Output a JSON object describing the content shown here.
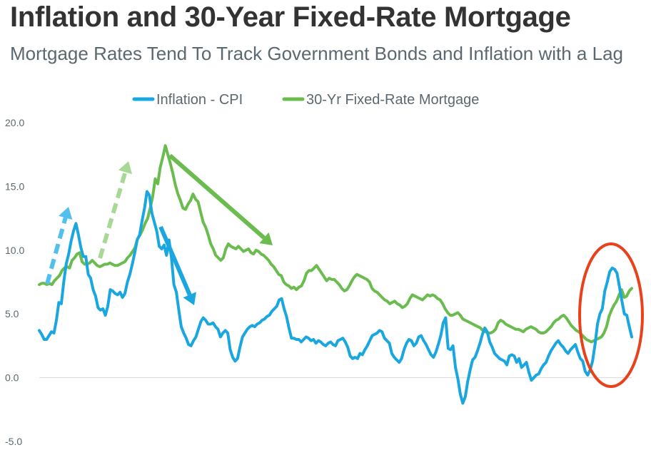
{
  "title": "Inflation and 30-Year Fixed-Rate Mortgage",
  "subtitle": "Mortgage Rates Tend To Track Government Bonds and Inflation with a Lag",
  "chart_data": {
    "type": "line",
    "ylim": [
      -5,
      20
    ],
    "y_ticks": [
      "20.0",
      "15.0",
      "10.0",
      "5.0",
      "0.0",
      "-5.0"
    ],
    "y_tick_values": [
      20,
      15,
      10,
      5,
      0,
      -5
    ],
    "grid": false,
    "legend_position": "top-center",
    "series": [
      {
        "name": "Inflation - CPI",
        "color": "#1aa7e0",
        "values": [
          3.7,
          3.4,
          3.0,
          3.0,
          3.3,
          3.6,
          3.5,
          4.5,
          5.9,
          5.8,
          7.5,
          8.9,
          9.7,
          10.7,
          11.5,
          12.1,
          11.2,
          10.2,
          9.5,
          9.5,
          8.1,
          7.8,
          6.9,
          6.4,
          5.5,
          5.3,
          5.4,
          4.9,
          5.6,
          6.9,
          6.8,
          6.6,
          6.5,
          6.7,
          6.3,
          6.6,
          7.5,
          8.1,
          8.9,
          9.8,
          10.8,
          11.2,
          12.3,
          13.3,
          14.6,
          14.3,
          12.9,
          12.2,
          11.5,
          10.3,
          10.1,
          10.4,
          9.6,
          10.8,
          9.4,
          7.3,
          6.7,
          5.3,
          4.0,
          3.5,
          3.1,
          2.6,
          2.5,
          2.9,
          3.2,
          3.8,
          4.4,
          4.7,
          4.5,
          4.2,
          4.2,
          4.3,
          4.0,
          3.8,
          3.2,
          3.5,
          3.7,
          3.5,
          2.2,
          1.6,
          1.3,
          1.5,
          2.4,
          3.2,
          3.5,
          3.8,
          4.0,
          4.1,
          4.0,
          4.2,
          4.3,
          4.5,
          4.6,
          4.8,
          4.9,
          5.2,
          5.4,
          5.6,
          6.1,
          6.2,
          5.4,
          4.8,
          3.9,
          3.1,
          3.1,
          3.0,
          3.0,
          2.8,
          3.0,
          3.2,
          3.1,
          2.9,
          3.0,
          2.7,
          2.9,
          2.8,
          2.6,
          2.5,
          2.7,
          2.8,
          2.6,
          2.5,
          2.9,
          3.0,
          3.1,
          2.8,
          2.4,
          1.7,
          1.5,
          1.6,
          1.5,
          1.9,
          1.8,
          2.2,
          2.5,
          2.9,
          3.3,
          3.4,
          3.5,
          3.7,
          3.6,
          3.1,
          2.9,
          2.7,
          1.9,
          1.6,
          1.4,
          1.2,
          1.5,
          2.2,
          2.7,
          3.0,
          2.9,
          2.5,
          2.7,
          3.2,
          3.3,
          2.9,
          2.6,
          2.2,
          1.8,
          1.6,
          2.0,
          2.6,
          3.3,
          4.3,
          4.7,
          2.3,
          2.2,
          2.5,
          0.8,
          -0.1,
          -1.3,
          -2.0,
          -1.5,
          -0.3,
          0.6,
          1.4,
          1.6,
          2.1,
          2.7,
          3.4,
          3.9,
          3.6,
          2.8,
          2.4,
          1.9,
          1.7,
          1.5,
          1.4,
          1.3,
          1.0,
          1.7,
          1.8,
          1.7,
          1.2,
          1.5,
          0.8,
          1.0,
          1.2,
          0.4,
          -0.2,
          0.0,
          0.2,
          0.3,
          0.7,
          1.0,
          1.2,
          1.7,
          2.1,
          2.4,
          2.7,
          2.9,
          2.6,
          2.4,
          2.1,
          1.9,
          2.2,
          2.4,
          2.6,
          2.0,
          1.5,
          1.3,
          0.5,
          0.2,
          0.6,
          1.3,
          2.6,
          4.2,
          5.0,
          5.4,
          6.8,
          7.5,
          8.3,
          8.6,
          8.5,
          8.2,
          7.1,
          6.0,
          5.0,
          4.9,
          4.0,
          3.2
        ]
      },
      {
        "name": "30-Yr Fixed-Rate Mortgage",
        "color": "#6abc4f",
        "values": [
          7.3,
          7.4,
          7.4,
          7.3,
          7.4,
          7.3,
          7.6,
          7.8,
          8.0,
          8.4,
          8.6,
          8.7,
          8.6,
          9.2,
          9.4,
          9.7,
          9.8,
          9.1,
          8.9,
          8.9,
          9.0,
          9.2,
          9.0,
          8.8,
          8.7,
          8.8,
          8.9,
          8.9,
          9.0,
          8.9,
          8.8,
          8.8,
          8.9,
          9.0,
          9.1,
          9.4,
          9.6,
          9.9,
          10.2,
          10.9,
          11.2,
          11.6,
          12.1,
          12.5,
          13.3,
          14.2,
          15.6,
          15.2,
          16.5,
          17.3,
          18.2,
          17.5,
          16.8,
          16.0,
          15.1,
          14.4,
          13.9,
          13.3,
          13.2,
          13.6,
          13.9,
          14.4,
          14.0,
          13.8,
          13.0,
          12.2,
          11.8,
          11.2,
          10.5,
          10.1,
          9.6,
          9.4,
          9.2,
          9.4,
          10.1,
          10.5,
          10.3,
          10.2,
          10.1,
          10.3,
          10.1,
          9.9,
          10.0,
          10.1,
          9.8,
          9.7,
          10.0,
          9.9,
          9.7,
          9.6,
          9.4,
          9.2,
          8.9,
          8.7,
          8.4,
          8.1,
          8.0,
          7.5,
          7.3,
          7.2,
          7.0,
          7.1,
          6.9,
          7.1,
          7.2,
          7.6,
          8.2,
          8.4,
          8.4,
          8.6,
          8.8,
          8.5,
          8.2,
          7.9,
          7.6,
          7.8,
          7.7,
          7.7,
          7.5,
          7.3,
          7.0,
          6.8,
          6.9,
          7.2,
          7.6,
          7.9,
          8.1,
          8.0,
          7.9,
          7.8,
          7.7,
          7.5,
          7.0,
          6.8,
          6.7,
          6.5,
          6.3,
          6.1,
          6.0,
          5.8,
          5.9,
          6.0,
          5.8,
          5.7,
          5.5,
          5.6,
          5.8,
          6.2,
          6.5,
          6.4,
          6.3,
          6.2,
          6.1,
          6.3,
          6.5,
          6.4,
          6.5,
          6.4,
          6.2,
          6.1,
          5.8,
          5.4,
          5.1,
          4.9,
          4.9,
          5.0,
          5.1,
          4.9,
          4.6,
          4.5,
          4.4,
          4.3,
          4.2,
          4.1,
          4.0,
          3.9,
          3.7,
          3.6,
          3.5,
          3.5,
          3.6,
          3.8,
          4.3,
          4.5,
          4.4,
          4.2,
          4.1,
          4.0,
          3.9,
          3.8,
          3.8,
          3.7,
          3.6,
          3.8,
          3.9,
          4.0,
          3.9,
          3.8,
          3.6,
          3.5,
          3.5,
          3.6,
          3.8,
          4.0,
          4.3,
          4.5,
          4.6,
          4.8,
          4.9,
          4.7,
          4.4,
          4.1,
          3.9,
          3.7,
          3.6,
          3.4,
          3.2,
          3.0,
          2.9,
          2.8,
          2.9,
          3.0,
          3.1,
          3.2,
          3.5,
          4.0,
          4.8,
          5.3,
          5.7,
          6.0,
          6.5,
          6.9,
          6.3,
          6.4,
          6.8,
          7.0
        ]
      }
    ],
    "annotations": [
      {
        "type": "arrow",
        "color": "#52c0ef",
        "dashed": true,
        "direction": "up"
      },
      {
        "type": "arrow",
        "color": "#a9d896",
        "dashed": true,
        "direction": "up"
      },
      {
        "type": "arrow",
        "color": "#6abc4f",
        "dashed": false,
        "direction": "down"
      },
      {
        "type": "arrow",
        "color": "#1aa7e0",
        "dashed": false,
        "direction": "down"
      },
      {
        "type": "ellipse",
        "color": "#e8411c"
      }
    ]
  }
}
